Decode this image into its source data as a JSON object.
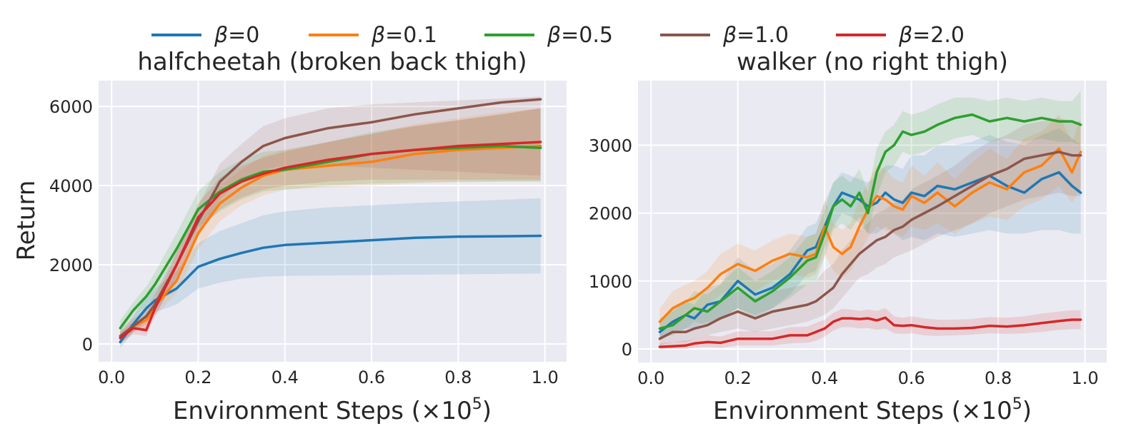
{
  "legend": {
    "entries": [
      {
        "beta": "β",
        "value": "=0",
        "color": "#1f77b4"
      },
      {
        "beta": "β",
        "value": "=0.1",
        "color": "#ff7f0e"
      },
      {
        "beta": "β",
        "value": "=0.5",
        "color": "#2ca02c"
      },
      {
        "beta": "β",
        "value": "=1.0",
        "color": "#8c564b"
      },
      {
        "beta": "β",
        "value": "=2.0",
        "color": "#d62728"
      }
    ]
  },
  "chart_data": [
    {
      "type": "line",
      "title": "halfcheetah (broken back thigh)",
      "xlabel": "Environment Steps (×10",
      "xlabel_exp": "5",
      "xlabel_close": ")",
      "ylabel": "Return",
      "xlim": [
        -0.03,
        1.05
      ],
      "ylim": [
        -450,
        6650
      ],
      "xticks": [
        0.0,
        0.2,
        0.4,
        0.6,
        0.8,
        1.0
      ],
      "xtick_labels": [
        "0.0",
        "0.2",
        "0.4",
        "0.6",
        "0.8",
        "1.0"
      ],
      "yticks": [
        0,
        2000,
        4000,
        6000
      ],
      "ytick_labels": [
        "0",
        "2000",
        "4000",
        "6000"
      ],
      "x": [
        0.02,
        0.05,
        0.08,
        0.1,
        0.15,
        0.2,
        0.25,
        0.3,
        0.35,
        0.4,
        0.5,
        0.6,
        0.7,
        0.8,
        0.9,
        0.99
      ],
      "series": [
        {
          "name": "β=0",
          "color": "#1f77b4",
          "values": [
            50,
            500,
            900,
            1100,
            1400,
            1950,
            2150,
            2300,
            2430,
            2500,
            2560,
            2620,
            2680,
            2710,
            2720,
            2730
          ],
          "lower": [
            -100,
            300,
            600,
            800,
            1000,
            1400,
            1550,
            1650,
            1700,
            1720,
            1730,
            1740,
            1750,
            1760,
            1770,
            1780
          ],
          "upper": [
            200,
            700,
            1200,
            1400,
            1850,
            2550,
            2850,
            3050,
            3250,
            3350,
            3450,
            3500,
            3560,
            3600,
            3640,
            3680
          ]
        },
        {
          "name": "β=0.1",
          "color": "#ff7f0e",
          "values": [
            150,
            450,
            600,
            950,
            1600,
            2800,
            3550,
            3950,
            4250,
            4400,
            4500,
            4600,
            4800,
            4900,
            4950,
            5000
          ],
          "lower": [
            0,
            300,
            400,
            700,
            1300,
            2400,
            3100,
            3500,
            3750,
            3900,
            3950,
            4000,
            4050,
            4080,
            4100,
            4100
          ],
          "upper": [
            300,
            650,
            850,
            1250,
            1950,
            3200,
            4000,
            4400,
            4750,
            4900,
            5100,
            5300,
            5550,
            5700,
            5850,
            5950
          ]
        },
        {
          "name": "β=0.5",
          "color": "#2ca02c",
          "values": [
            400,
            850,
            1200,
            1500,
            2400,
            3400,
            3850,
            4150,
            4350,
            4400,
            4600,
            4800,
            4900,
            4950,
            5000,
            4950
          ],
          "lower": [
            250,
            650,
            950,
            1200,
            2000,
            2950,
            3350,
            3650,
            3850,
            3900,
            4000,
            4050,
            4080,
            4100,
            4100,
            4100
          ],
          "upper": [
            600,
            1050,
            1450,
            1800,
            2800,
            3850,
            4350,
            4650,
            4850,
            4900,
            5100,
            5350,
            5500,
            5650,
            5800,
            5950
          ]
        },
        {
          "name": "β=1.0",
          "color": "#8c564b",
          "values": [
            200,
            450,
            700,
            1000,
            2000,
            3100,
            4100,
            4600,
            5000,
            5200,
            5450,
            5600,
            5800,
            5950,
            6100,
            6180
          ],
          "lower": [
            50,
            300,
            500,
            750,
            1650,
            2700,
            3650,
            4150,
            4400,
            4500,
            4500,
            4450,
            4400,
            4350,
            4300,
            4250
          ],
          "upper": [
            350,
            650,
            900,
            1250,
            2350,
            3500,
            4550,
            5050,
            5500,
            5700,
            5950,
            6050,
            6100,
            6150,
            6200,
            6250
          ]
        },
        {
          "name": "β=2.0",
          "color": "#d62728",
          "values": [
            150,
            400,
            350,
            900,
            2000,
            3200,
            3800,
            4100,
            4300,
            4450,
            4650,
            4800,
            4900,
            5000,
            5050,
            5100
          ],
          "lower": [
            0,
            250,
            200,
            700,
            1700,
            2850,
            3400,
            3700,
            3900,
            4000,
            4100,
            4150,
            4150,
            4150,
            4150,
            4150
          ],
          "upper": [
            300,
            550,
            550,
            1100,
            2300,
            3550,
            4200,
            4500,
            4700,
            4850,
            5100,
            5300,
            5500,
            5650,
            5800,
            5950
          ]
        }
      ]
    },
    {
      "type": "line",
      "title": "walker (no right thigh)",
      "xlabel": "Environment Steps (×10",
      "xlabel_exp": "5",
      "xlabel_close": ")",
      "ylabel": "",
      "xlim": [
        -0.03,
        1.05
      ],
      "ylim": [
        -200,
        3950
      ],
      "xticks": [
        0.0,
        0.2,
        0.4,
        0.6,
        0.8,
        1.0
      ],
      "xtick_labels": [
        "0.0",
        "0.2",
        "0.4",
        "0.6",
        "0.8",
        "1.0"
      ],
      "yticks": [
        0,
        1000,
        2000,
        3000
      ],
      "ytick_labels": [
        "0",
        "1000",
        "2000",
        "3000"
      ],
      "x": [
        0.02,
        0.05,
        0.08,
        0.1,
        0.13,
        0.16,
        0.2,
        0.24,
        0.28,
        0.32,
        0.36,
        0.38,
        0.4,
        0.42,
        0.44,
        0.46,
        0.48,
        0.5,
        0.52,
        0.54,
        0.56,
        0.58,
        0.6,
        0.63,
        0.66,
        0.7,
        0.74,
        0.78,
        0.82,
        0.86,
        0.9,
        0.94,
        0.97,
        0.99
      ],
      "series": [
        {
          "name": "β=0",
          "color": "#1f77b4",
          "values": [
            250,
            400,
            500,
            450,
            650,
            700,
            1000,
            800,
            900,
            1100,
            1450,
            1500,
            1800,
            2100,
            2300,
            2250,
            2200,
            2100,
            2150,
            2300,
            2200,
            2150,
            2300,
            2250,
            2400,
            2350,
            2450,
            2550,
            2400,
            2300,
            2500,
            2600,
            2400,
            2300
          ],
          "lower": [
            150,
            250,
            300,
            300,
            400,
            450,
            600,
            500,
            600,
            800,
            1100,
            1150,
            1500,
            1800,
            2000,
            1950,
            1850,
            1700,
            1700,
            1800,
            1700,
            1600,
            1650,
            1600,
            1700,
            1650,
            1700,
            1750,
            1700,
            1700,
            1750,
            1750,
            1700,
            1700
          ],
          "upper": [
            400,
            600,
            700,
            650,
            900,
            950,
            1350,
            1150,
            1250,
            1450,
            1800,
            1850,
            2150,
            2450,
            2600,
            2550,
            2500,
            2450,
            2550,
            2700,
            2700,
            2650,
            2850,
            2850,
            3000,
            3000,
            3050,
            3150,
            3050,
            3000,
            3150,
            3250,
            3100,
            3000
          ]
        },
        {
          "name": "β=0.1",
          "color": "#ff7f0e",
          "values": [
            400,
            600,
            700,
            750,
            900,
            1100,
            1250,
            1150,
            1300,
            1400,
            1350,
            1400,
            1800,
            1500,
            1400,
            1500,
            1800,
            2050,
            2250,
            2200,
            2100,
            2050,
            2250,
            2150,
            2300,
            2100,
            2300,
            2450,
            2350,
            2600,
            2700,
            2950,
            2600,
            2900
          ],
          "lower": [
            250,
            350,
            450,
            500,
            650,
            800,
            950,
            850,
            1000,
            1100,
            1050,
            1100,
            1400,
            1150,
            1050,
            1150,
            1400,
            1650,
            1800,
            1750,
            1700,
            1650,
            1800,
            1750,
            1850,
            1700,
            1850,
            1950,
            1900,
            2100,
            2200,
            2400,
            2150,
            2350
          ],
          "upper": [
            600,
            850,
            950,
            1000,
            1150,
            1400,
            1550,
            1450,
            1600,
            1700,
            1650,
            1700,
            2200,
            1850,
            1750,
            1850,
            2200,
            2450,
            2700,
            2650,
            2500,
            2450,
            2700,
            2550,
            2750,
            2500,
            2750,
            2950,
            2800,
            3100,
            3200,
            3450,
            3050,
            3400
          ]
        },
        {
          "name": "β=0.5",
          "color": "#2ca02c",
          "values": [
            300,
            350,
            500,
            600,
            550,
            700,
            900,
            700,
            850,
            1050,
            1300,
            1350,
            1700,
            2100,
            2200,
            2100,
            2300,
            2000,
            2600,
            2900,
            3000,
            3200,
            3150,
            3200,
            3300,
            3400,
            3450,
            3350,
            3400,
            3350,
            3400,
            3350,
            3350,
            3300
          ],
          "lower": [
            180,
            200,
            300,
            400,
            350,
            450,
            600,
            450,
            600,
            750,
            950,
            1000,
            1350,
            1750,
            1850,
            1750,
            1950,
            1700,
            2250,
            2600,
            2700,
            2900,
            2850,
            2900,
            3000,
            3100,
            3150,
            3050,
            3100,
            3050,
            3100,
            3050,
            3050,
            3000
          ],
          "upper": [
            450,
            550,
            700,
            850,
            800,
            950,
            1200,
            1000,
            1150,
            1350,
            1650,
            1700,
            2050,
            2450,
            2550,
            2450,
            2650,
            2300,
            2950,
            3200,
            3300,
            3500,
            3450,
            3500,
            3600,
            3700,
            3700,
            3650,
            3700,
            3650,
            3700,
            3650,
            3650,
            3800
          ]
        },
        {
          "name": "β=1.0",
          "color": "#8c564b",
          "values": [
            150,
            250,
            250,
            300,
            350,
            450,
            550,
            450,
            550,
            600,
            650,
            700,
            800,
            900,
            1100,
            1250,
            1400,
            1500,
            1600,
            1650,
            1750,
            1800,
            1900,
            2000,
            2100,
            2250,
            2400,
            2550,
            2650,
            2800,
            2850,
            2900,
            2850,
            2850
          ],
          "lower": [
            50,
            100,
            100,
            150,
            200,
            250,
            300,
            250,
            300,
            350,
            400,
            450,
            500,
            600,
            750,
            900,
            1050,
            1100,
            1200,
            1250,
            1350,
            1400,
            1450,
            1550,
            1650,
            1750,
            1850,
            2000,
            2100,
            2200,
            2250,
            2300,
            2250,
            2250
          ],
          "upper": [
            300,
            400,
            450,
            500,
            600,
            700,
            850,
            750,
            850,
            900,
            950,
            1000,
            1150,
            1250,
            1450,
            1600,
            1750,
            1850,
            2000,
            2050,
            2150,
            2200,
            2350,
            2450,
            2550,
            2700,
            2900,
            3050,
            3150,
            3300,
            3350,
            3400,
            3350,
            3350
          ]
        },
        {
          "name": "β=2.0",
          "color": "#d62728",
          "values": [
            30,
            40,
            50,
            80,
            100,
            90,
            150,
            150,
            150,
            200,
            200,
            250,
            300,
            400,
            450,
            450,
            440,
            450,
            420,
            460,
            350,
            340,
            350,
            320,
            300,
            300,
            310,
            340,
            330,
            350,
            380,
            410,
            430,
            430
          ],
          "lower": [
            0,
            0,
            0,
            20,
            30,
            20,
            50,
            50,
            50,
            80,
            90,
            120,
            180,
            270,
            320,
            320,
            300,
            310,
            280,
            300,
            230,
            220,
            230,
            200,
            190,
            200,
            210,
            230,
            220,
            230,
            250,
            280,
            290,
            290
          ],
          "upper": [
            80,
            100,
            120,
            150,
            200,
            180,
            260,
            260,
            260,
            320,
            330,
            380,
            430,
            530,
            590,
            580,
            560,
            580,
            560,
            600,
            480,
            460,
            480,
            450,
            430,
            430,
            440,
            470,
            460,
            480,
            520,
            550,
            570,
            570
          ]
        }
      ]
    }
  ]
}
